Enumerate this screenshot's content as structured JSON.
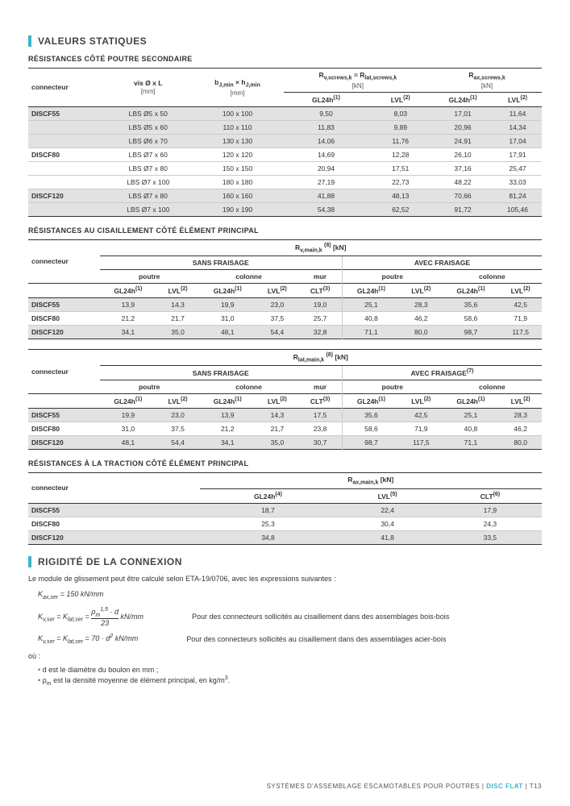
{
  "colors": {
    "accent": "#3db5c7",
    "stripe": "#e2e2e2",
    "text": "#333333",
    "border": "#333333",
    "border_light": "#cccccc"
  },
  "section1": {
    "title": "VALEURS STATIQUES"
  },
  "table1": {
    "heading": "RÉSISTANCES CÔTÉ POUTRE SECONDAIRE",
    "headers": {
      "col1": "connecteur",
      "col2": "vis Ø x L",
      "col2_unit": "[mm]",
      "col3": "b_J,min × h_J,min",
      "col3_unit": "[mm]",
      "col4": "R_v,screws,k = R_lat,screws,k",
      "col4_unit": "[kN]",
      "col5": "R_ax,screws,k",
      "col5_unit": "[kN]",
      "sub_gl": "GL24h(1)",
      "sub_lvl": "LVL(2)"
    },
    "rows": [
      {
        "g": "DISCF55",
        "vis": "LBS Ø5 x 50",
        "dim": "100 x 100",
        "rv_gl": "9,50",
        "rv_lvl": "8,03",
        "rax_gl": "17,01",
        "rax_lvl": "11,64",
        "striped": true
      },
      {
        "g": "",
        "vis": "LBS Ø5 x 60",
        "dim": "110 x 110",
        "rv_gl": "11,83",
        "rv_lvl": "9,89",
        "rax_gl": "20,96",
        "rax_lvl": "14,34",
        "striped": true
      },
      {
        "g": "",
        "vis": "LBS Ø6 x 70",
        "dim": "130 x 130",
        "rv_gl": "14,06",
        "rv_lvl": "11,76",
        "rax_gl": "24,91",
        "rax_lvl": "17,04",
        "striped": true
      },
      {
        "g": "DISCF80",
        "vis": "LBS Ø7 x 60",
        "dim": "120 x 120",
        "rv_gl": "14,69",
        "rv_lvl": "12,28",
        "rax_gl": "26,10",
        "rax_lvl": "17,91",
        "striped": false
      },
      {
        "g": "",
        "vis": "LBS Ø7 x 80",
        "dim": "150 x 150",
        "rv_gl": "20,94",
        "rv_lvl": "17,51",
        "rax_gl": "37,16",
        "rax_lvl": "25,47",
        "striped": false
      },
      {
        "g": "",
        "vis": "LBS Ø7 x 100",
        "dim": "180 x 180",
        "rv_gl": "27,19",
        "rv_lvl": "22,73",
        "rax_gl": "48,22",
        "rax_lvl": "33,03",
        "striped": false
      },
      {
        "g": "DISCF120",
        "vis": "LBS Ø7 x 80",
        "dim": "160 x 160",
        "rv_gl": "41,88",
        "rv_lvl": "48,13",
        "rax_gl": "70,66",
        "rax_lvl": "81,24",
        "striped": true
      },
      {
        "g": "",
        "vis": "LBS Ø7 x 100",
        "dim": "190 x 190",
        "rv_gl": "54,38",
        "rv_lvl": "62,52",
        "rax_gl": "91,72",
        "rax_lvl": "105,46",
        "striped": true
      }
    ]
  },
  "table2": {
    "heading": "RÉSISTANCES AU CISAILLEMENT CÔTÉ ÉLÉMENT PRINCIPAL",
    "labels": {
      "conn": "connecteur",
      "top": "R_v,main,k (8) [kN]",
      "sans": "SANS FRAISAGE",
      "avec": "AVEC FRAISAGE",
      "poutre": "poutre",
      "colonne": "colonne",
      "mur": "mur",
      "gl": "GL24h(1)",
      "lvl": "LVL(2)",
      "clt": "CLT(3)"
    },
    "rows": [
      {
        "c": "DISCF55",
        "v": [
          "13,9",
          "14,3",
          "19,9",
          "23,0",
          "19,0",
          "25,1",
          "28,3",
          "35,6",
          "42,5"
        ],
        "striped": true
      },
      {
        "c": "DISCF80",
        "v": [
          "21,2",
          "21,7",
          "31,0",
          "37,5",
          "25,7",
          "40,8",
          "46,2",
          "58,6",
          "71,9"
        ],
        "striped": false
      },
      {
        "c": "DISCF120",
        "v": [
          "34,1",
          "35,0",
          "48,1",
          "54,4",
          "32,8",
          "71,1",
          "80,0",
          "98,7",
          "117,5"
        ],
        "striped": true
      }
    ]
  },
  "table3": {
    "labels": {
      "conn": "connecteur",
      "top": "R_lat,main,k (8) [kN]",
      "sans": "SANS FRAISAGE",
      "avec": "AVEC FRAISAGE(7)",
      "poutre": "poutre",
      "colonne": "colonne",
      "mur": "mur",
      "gl": "GL24h(1)",
      "lvl": "LVL(2)",
      "clt": "CLT(3)"
    },
    "rows": [
      {
        "c": "DISCF55",
        "v": [
          "19,9",
          "23,0",
          "13,9",
          "14,3",
          "17,5",
          "35,6",
          "42,5",
          "25,1",
          "28,3"
        ],
        "striped": true
      },
      {
        "c": "DISCF80",
        "v": [
          "31,0",
          "37,5",
          "21,2",
          "21,7",
          "23,8",
          "58,6",
          "71,9",
          "40,8",
          "46,2"
        ],
        "striped": false
      },
      {
        "c": "DISCF120",
        "v": [
          "48,1",
          "54,4",
          "34,1",
          "35,0",
          "30,7",
          "98,7",
          "117,5",
          "71,1",
          "80,0"
        ],
        "striped": true
      }
    ]
  },
  "table4": {
    "heading": "RÉSISTANCES À LA TRACTION CÔTÉ ÉLÉMENT PRINCIPAL",
    "labels": {
      "conn": "connecteur",
      "top": "R_ax,main,k [kN]",
      "gl": "GL24h(4)",
      "lvl": "LVL(5)",
      "clt": "CLT(6)"
    },
    "rows": [
      {
        "c": "DISCF55",
        "gl": "18,7",
        "lvl": "22,4",
        "clt": "17,9",
        "striped": true
      },
      {
        "c": "DISCF80",
        "gl": "25,3",
        "lvl": "30,4",
        "clt": "24,3",
        "striped": false
      },
      {
        "c": "DISCF120",
        "gl": "34,8",
        "lvl": "41,8",
        "clt": "33,5",
        "striped": true
      }
    ]
  },
  "section2": {
    "title": "RIGIDITÉ DE LA CONNEXION",
    "intro": "Le module de glissement peut être calculé selon ETA-19/0706, avec les expressions suivantes :",
    "f1": "K_ax,ser = 150 kN/mm",
    "f2": "K_v,ser = K_lat,ser = ρ_m^1,5 · d / 23  kN/mm",
    "f2_note": "Pour des connecteurs sollicités au cisaillement dans des assemblages bois-bois",
    "f3": "K_v,ser = K_lat,ser = 70 · d²  kN/mm",
    "f3_note": "Pour des connecteurs sollicités au cisaillement dans des assemblages acier-bois",
    "ou": "où :",
    "n1": "d est le diamètre du boulon en mm ;",
    "n2": "ρ_m est la densité moyenne de élément principal, en kg/m³."
  },
  "footer": {
    "text": "SYSTÈMES D'ASSEMBLAGE ESCAMOTABLES POUR POUTRES",
    "brand": "DISC FLAT",
    "page": "T13"
  }
}
